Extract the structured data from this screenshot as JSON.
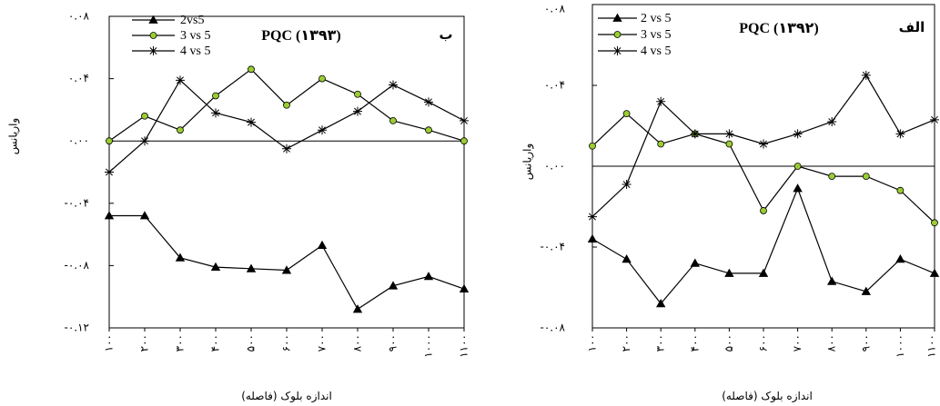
{
  "chart_data": [
    {
      "type": "line",
      "panel_label": "ب",
      "title": "PQC (۱۳۹۳)",
      "xlabel": "اندازه بلوک (فاصله)",
      "ylabel": "واریانس",
      "categories": [
        "۱۰۰",
        "۲۰۰",
        "۳۰۰",
        "۴۰۰",
        "۵۰۰",
        "۶۰۰",
        "۷۰۰",
        "۸۰۰",
        "۹۰۰",
        "۱۰۰۰",
        "۱۱۰۰"
      ],
      "ylim": [
        -0.12,
        0.08
      ],
      "yticks": [
        0.08,
        0.04,
        0,
        -0.04,
        -0.08,
        -0.12
      ],
      "ytick_labels": [
        "۰.۰۸",
        "۰.۰۴",
        "۰.۰۰",
        "-۰.۰۴",
        "-۰.۰۸",
        "-۰.۱۲"
      ],
      "reference_line_y": 0,
      "grid": false,
      "legend_position": "top-left",
      "series": [
        {
          "name": "2vs5",
          "marker": "triangle",
          "line_color": "#000000",
          "marker_fill": "#000000",
          "values": [
            -0.048,
            -0.048,
            -0.075,
            -0.081,
            -0.082,
            -0.083,
            -0.067,
            -0.108,
            -0.093,
            -0.087,
            -0.095
          ]
        },
        {
          "name": "3 vs 5",
          "marker": "circle",
          "line_color": "#000000",
          "marker_fill": "#9acd32",
          "values": [
            0.0,
            0.016,
            0.007,
            0.029,
            0.046,
            0.023,
            0.04,
            0.03,
            0.013,
            0.007,
            0.0
          ]
        },
        {
          "name": "4 vs 5",
          "marker": "asterisk",
          "line_color": "#000000",
          "marker_fill": "#000000",
          "values": [
            -0.02,
            0.0,
            0.039,
            0.018,
            0.012,
            -0.005,
            0.007,
            0.019,
            0.036,
            0.025,
            0.013
          ]
        }
      ]
    },
    {
      "type": "line",
      "panel_label": "الف",
      "title": "PQC (۱۳۹۲)",
      "xlabel": "اندازه بلوک (فاصله)",
      "ylabel": "واریانس",
      "categories": [
        "۱۰۰",
        "۲۰۰",
        "۳۰۰",
        "۴۰۰",
        "۵۰۰",
        "۶۰۰",
        "۷۰۰",
        "۸۰۰",
        "۹۰۰",
        "۱۰۰۰",
        "۱۱۰۰"
      ],
      "ylim": [
        -0.08,
        0.08
      ],
      "yticks": [
        0.08,
        0.04,
        0,
        -0.04,
        -0.08
      ],
      "ytick_labels": [
        "۰.۰۸",
        "۰.۰۴",
        "۰.۰۰",
        "-۰.۰۴",
        "-۰.۰۸"
      ],
      "reference_line_y": 0,
      "grid": false,
      "legend_position": "top-left",
      "series": [
        {
          "name": "2 vs 5",
          "marker": "triangle",
          "line_color": "#000000",
          "marker_fill": "#000000",
          "values": [
            -0.036,
            -0.046,
            -0.068,
            -0.048,
            -0.053,
            -0.053,
            -0.011,
            -0.057,
            -0.062,
            -0.046,
            -0.053
          ]
        },
        {
          "name": "3 vs 5",
          "marker": "circle",
          "line_color": "#000000",
          "marker_fill": "#9acd32",
          "values": [
            0.01,
            0.026,
            0.011,
            0.016,
            0.011,
            -0.022,
            0.0,
            -0.005,
            -0.005,
            -0.012,
            -0.028
          ]
        },
        {
          "name": "4 vs 5",
          "marker": "asterisk",
          "line_color": "#000000",
          "marker_fill": "#000000",
          "values": [
            -0.025,
            -0.009,
            0.032,
            0.016,
            0.016,
            0.011,
            0.016,
            0.022,
            0.045,
            0.016,
            0.023
          ]
        }
      ]
    }
  ]
}
